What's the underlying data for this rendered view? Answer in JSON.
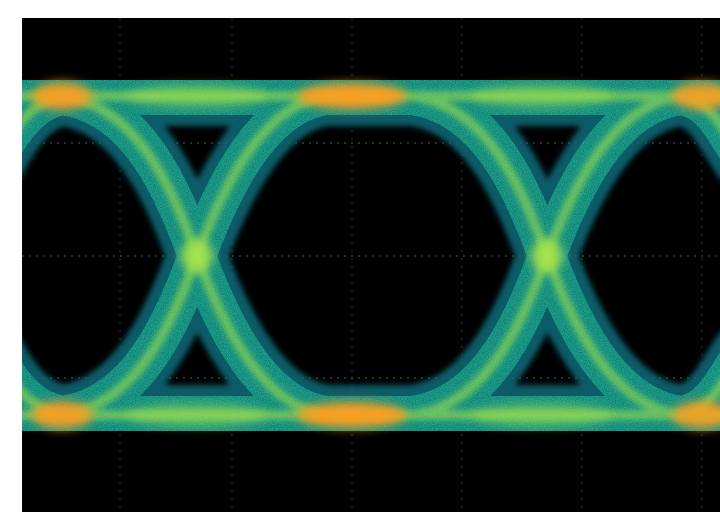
{
  "display": {
    "kind": "eye-diagram",
    "background_color": "#000000",
    "graticule": {
      "visible": true,
      "color": "#5a5a5a"
    },
    "trace_colors": {
      "low_density": "#0d6b7a",
      "mid_density": "#27d5a0",
      "high_density": "#a9e64a",
      "peak_density": "#ff9d1c"
    },
    "unit_intervals_visible": 2,
    "crossing_points_visible": 2
  }
}
